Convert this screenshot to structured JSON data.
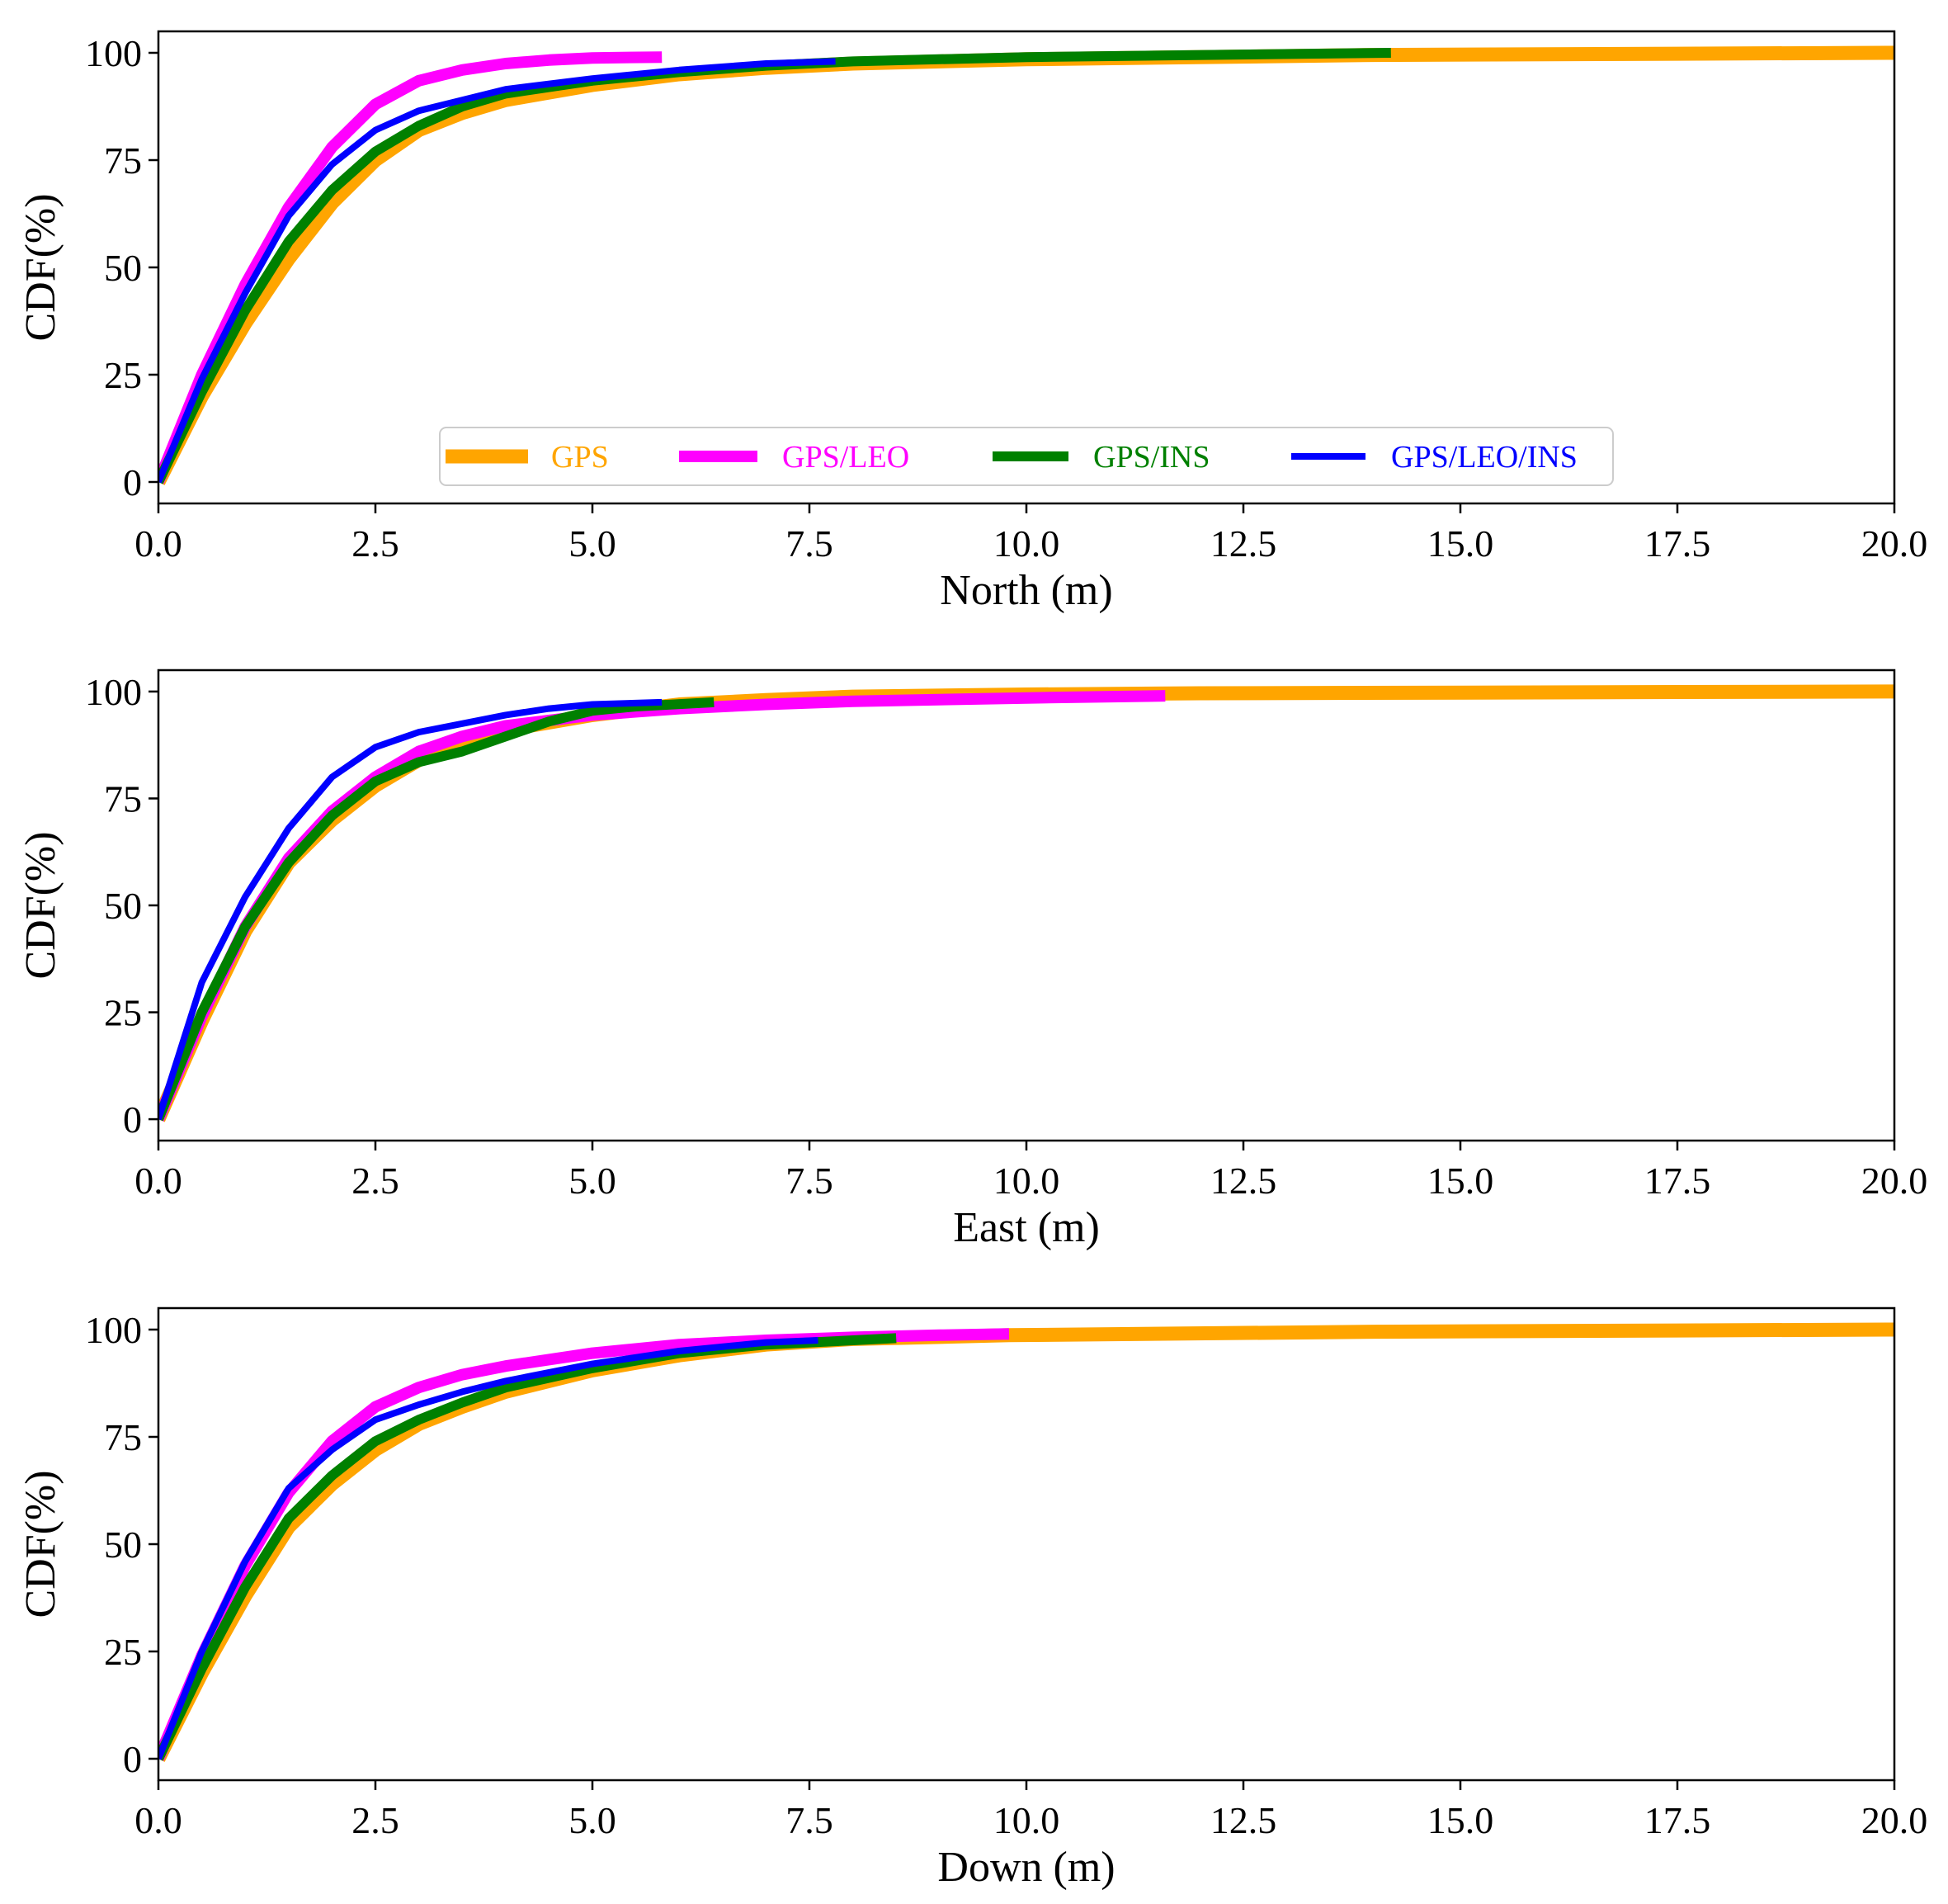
{
  "chart_data": [
    {
      "type": "line",
      "xlabel": "North (m)",
      "ylabel": "CDF(%)",
      "xlim": [
        0,
        20
      ],
      "ylim": [
        -5,
        105
      ],
      "xticks": [
        "0.0",
        "2.5",
        "5.0",
        "7.5",
        "10.0",
        "12.5",
        "15.0",
        "17.5",
        "20.0"
      ],
      "yticks": [
        "0",
        "25",
        "50",
        "75",
        "100"
      ],
      "grid": false,
      "legend_position": "bottom-center",
      "legend": [
        "GPS",
        "GPS/LEO",
        "GPS/INS",
        "GPS/LEO/INS"
      ],
      "series": [
        {
          "name": "GPS",
          "color": "#FFA500",
          "x": [
            0,
            0.5,
            1,
            1.5,
            2,
            2.5,
            3,
            3.5,
            4,
            5,
            6,
            7,
            8,
            10,
            14,
            20
          ],
          "y": [
            0,
            20,
            37,
            52,
            65,
            75,
            82,
            86,
            89,
            92.5,
            95,
            96.5,
            97.5,
            98.5,
            99.5,
            100
          ]
        },
        {
          "name": "GPS/LEO",
          "color": "#FF00FF",
          "x": [
            0,
            0.5,
            1,
            1.5,
            2,
            2.5,
            3,
            3.5,
            4,
            4.5,
            5,
            5.8
          ],
          "y": [
            0,
            25,
            46,
            64,
            78,
            88,
            93.5,
            96,
            97.5,
            98.3,
            98.8,
            99
          ]
        },
        {
          "name": "GPS/INS",
          "color": "#008000",
          "x": [
            0,
            0.5,
            1,
            1.5,
            2,
            2.5,
            3,
            3.5,
            4,
            5,
            6,
            7,
            8,
            10,
            14.2
          ],
          "y": [
            0,
            21,
            40,
            56,
            68,
            77,
            83,
            87.5,
            90.5,
            93.5,
            95.5,
            97,
            98,
            99,
            100
          ]
        },
        {
          "name": "GPS/LEO/INS",
          "color": "#0000FF",
          "x": [
            0,
            0.5,
            1,
            1.5,
            2,
            2.5,
            3,
            3.5,
            4,
            5,
            6,
            7,
            7.8
          ],
          "y": [
            0,
            24,
            44,
            62,
            74,
            82,
            86.5,
            89,
            91.5,
            94,
            96,
            97.5,
            98
          ]
        }
      ]
    },
    {
      "type": "line",
      "xlabel": "East (m)",
      "ylabel": "CDF(%)",
      "xlim": [
        0,
        20
      ],
      "ylim": [
        -5,
        105
      ],
      "xticks": [
        "0.0",
        "2.5",
        "5.0",
        "7.5",
        "10.0",
        "12.5",
        "15.0",
        "17.5",
        "20.0"
      ],
      "yticks": [
        "0",
        "25",
        "50",
        "75",
        "100"
      ],
      "grid": false,
      "series": [
        {
          "name": "GPS",
          "color": "#FFA500",
          "x": [
            0,
            0.5,
            1,
            1.5,
            2,
            2.5,
            3,
            3.5,
            4,
            5,
            6,
            7,
            8,
            10,
            12,
            20
          ],
          "y": [
            0,
            23,
            44,
            60,
            70,
            78,
            84,
            88,
            91,
            94.5,
            97,
            98,
            98.8,
            99.3,
            99.6,
            100
          ]
        },
        {
          "name": "GPS/LEO",
          "color": "#FF00FF",
          "x": [
            0,
            0.5,
            1,
            1.5,
            2,
            2.5,
            3,
            3.5,
            4,
            5,
            6,
            7,
            8,
            10,
            11.6
          ],
          "y": [
            0,
            24,
            45,
            61,
            72,
            80,
            86,
            89.5,
            92,
            94.5,
            96,
            97,
            97.7,
            98.5,
            99
          ]
        },
        {
          "name": "GPS/INS",
          "color": "#008000",
          "x": [
            0,
            0.5,
            1,
            1.5,
            2,
            2.5,
            3,
            3.5,
            4,
            4.5,
            5,
            5.5,
            6.4
          ],
          "y": [
            0,
            25,
            45,
            60,
            71,
            79,
            83.5,
            86,
            89.5,
            93,
            95.5,
            96.5,
            97.5
          ]
        },
        {
          "name": "GPS/LEO/INS",
          "color": "#0000FF",
          "x": [
            0,
            0.5,
            1,
            1.5,
            2,
            2.5,
            3,
            3.5,
            4,
            4.5,
            5,
            5.8
          ],
          "y": [
            0,
            32,
            52,
            68,
            80,
            87,
            90.5,
            92.5,
            94.5,
            96,
            97,
            97.5
          ]
        }
      ]
    },
    {
      "type": "line",
      "xlabel": "Down (m)",
      "ylabel": "CDF(%)",
      "xlim": [
        0,
        20
      ],
      "ylim": [
        -5,
        105
      ],
      "xticks": [
        "0.0",
        "2.5",
        "5.0",
        "7.5",
        "10.0",
        "12.5",
        "15.0",
        "17.5",
        "20.0"
      ],
      "yticks": [
        "0",
        "25",
        "50",
        "75",
        "100"
      ],
      "grid": false,
      "series": [
        {
          "name": "GPS",
          "color": "#FFA500",
          "x": [
            0,
            0.5,
            1,
            1.5,
            2,
            2.5,
            3,
            3.5,
            4,
            5,
            6,
            7,
            8,
            9.8,
            14,
            20
          ],
          "y": [
            0,
            20,
            38,
            54,
            64,
            72,
            78,
            82,
            85.5,
            90.5,
            94,
            96.5,
            97.8,
            98.7,
            99.5,
            100
          ]
        },
        {
          "name": "GPS/LEO",
          "color": "#FF00FF",
          "x": [
            0,
            0.5,
            1,
            1.5,
            2,
            2.5,
            3,
            3.5,
            4,
            5,
            6,
            7,
            8,
            9,
            9.8
          ],
          "y": [
            0,
            24,
            45,
            62,
            74,
            82,
            86.5,
            89.5,
            91.5,
            94.5,
            96.5,
            97.5,
            98.2,
            98.7,
            99
          ]
        },
        {
          "name": "GPS/INS",
          "color": "#008000",
          "x": [
            0,
            0.5,
            1,
            1.5,
            2,
            2.5,
            3,
            3.5,
            4,
            5,
            6,
            7,
            8,
            8.5
          ],
          "y": [
            0,
            21,
            40,
            56,
            66,
            74,
            79,
            83,
            86.5,
            91,
            94.5,
            96.5,
            97.5,
            98
          ]
        },
        {
          "name": "GPS/LEO/INS",
          "color": "#0000FF",
          "x": [
            0,
            0.5,
            1,
            1.5,
            2,
            2.5,
            3,
            3.5,
            4,
            5,
            6,
            7,
            7.6
          ],
          "y": [
            0,
            25,
            46,
            63,
            72,
            79,
            82.5,
            85.5,
            88,
            92,
            95,
            97,
            97.5
          ]
        }
      ]
    }
  ]
}
